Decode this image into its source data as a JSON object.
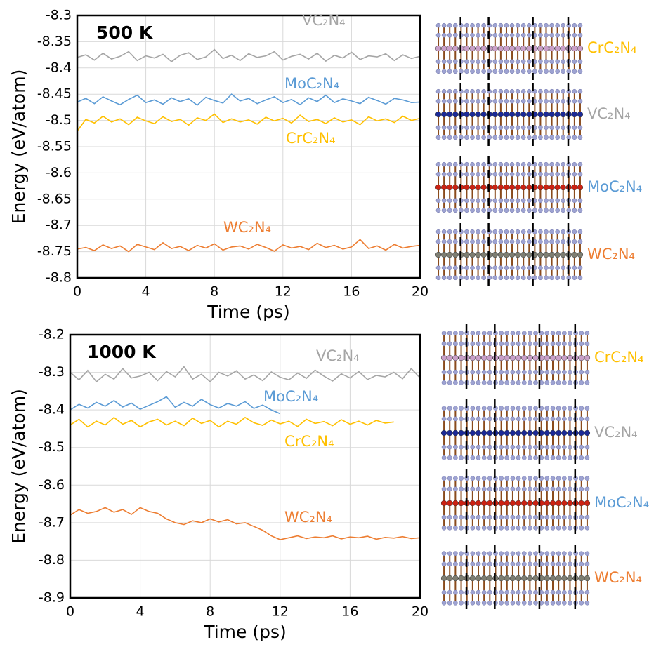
{
  "chart_data": [
    {
      "type": "line",
      "annotation": "500 K",
      "xlabel": "Time (ps)",
      "ylabel": "Energy (eV/atom)",
      "xlim": [
        0,
        20
      ],
      "ylim": [
        -8.8,
        -8.3
      ],
      "xticks": [
        0,
        4,
        8,
        12,
        16,
        20
      ],
      "yticks": [
        -8.8,
        -8.75,
        -8.7,
        -8.65,
        -8.6,
        -8.55,
        -8.5,
        -8.45,
        -8.4,
        -8.35,
        -8.3
      ],
      "grid": true,
      "x": [
        0,
        0.5,
        1,
        1.5,
        2,
        2.5,
        3,
        3.5,
        4,
        4.5,
        5,
        5.5,
        6,
        6.5,
        7,
        7.5,
        8,
        8.5,
        9,
        9.5,
        10,
        10.5,
        11,
        11.5,
        12,
        12.5,
        13,
        13.5,
        14,
        14.5,
        15,
        15.5,
        16,
        16.5,
        17,
        17.5,
        18,
        18.5,
        19,
        19.5,
        20
      ],
      "series": [
        {
          "name": "VC₂N₄",
          "color": "#a5a5a5",
          "values": [
            -8.38,
            -8.375,
            -8.385,
            -8.372,
            -8.383,
            -8.378,
            -8.369,
            -8.386,
            -8.377,
            -8.381,
            -8.374,
            -8.388,
            -8.376,
            -8.371,
            -8.384,
            -8.379,
            -8.365,
            -8.382,
            -8.376,
            -8.386,
            -8.373,
            -8.38,
            -8.377,
            -8.369,
            -8.385,
            -8.378,
            -8.374,
            -8.383,
            -8.372,
            -8.387,
            -8.376,
            -8.381,
            -8.37,
            -8.384,
            -8.377,
            -8.379,
            -8.373,
            -8.386,
            -8.375,
            -8.382,
            -8.378
          ]
        },
        {
          "name": "MoC₂N₄",
          "color": "#5b9bd5",
          "values": [
            -8.465,
            -8.458,
            -8.468,
            -8.455,
            -8.463,
            -8.47,
            -8.46,
            -8.452,
            -8.466,
            -8.461,
            -8.469,
            -8.457,
            -8.464,
            -8.459,
            -8.471,
            -8.456,
            -8.462,
            -8.467,
            -8.45,
            -8.463,
            -8.458,
            -8.468,
            -8.461,
            -8.455,
            -8.466,
            -8.46,
            -8.47,
            -8.457,
            -8.464,
            -8.452,
            -8.466,
            -8.459,
            -8.463,
            -8.468,
            -8.456,
            -8.462,
            -8.469,
            -8.458,
            -8.461,
            -8.466,
            -8.465
          ]
        },
        {
          "name": "CrC₂N₄",
          "color": "#ffc000",
          "values": [
            -8.52,
            -8.498,
            -8.505,
            -8.492,
            -8.503,
            -8.497,
            -8.508,
            -8.494,
            -8.501,
            -8.506,
            -8.493,
            -8.502,
            -8.498,
            -8.509,
            -8.495,
            -8.5,
            -8.488,
            -8.504,
            -8.497,
            -8.503,
            -8.499,
            -8.507,
            -8.494,
            -8.501,
            -8.496,
            -8.505,
            -8.49,
            -8.502,
            -8.498,
            -8.506,
            -8.495,
            -8.503,
            -8.499,
            -8.508,
            -8.493,
            -8.501,
            -8.497,
            -8.504,
            -8.492,
            -8.5,
            -8.496
          ]
        },
        {
          "name": "WC₂N₄",
          "color": "#ed7d31",
          "values": [
            -8.745,
            -8.742,
            -8.748,
            -8.737,
            -8.744,
            -8.739,
            -8.75,
            -8.736,
            -8.741,
            -8.746,
            -8.733,
            -8.744,
            -8.74,
            -8.748,
            -8.738,
            -8.743,
            -8.735,
            -8.747,
            -8.741,
            -8.739,
            -8.745,
            -8.736,
            -8.742,
            -8.749,
            -8.737,
            -8.743,
            -8.74,
            -8.746,
            -8.734,
            -8.742,
            -8.738,
            -8.745,
            -8.741,
            -8.727,
            -8.744,
            -8.739,
            -8.747,
            -8.736,
            -8.743,
            -8.74,
            -8.738
          ]
        }
      ]
    },
    {
      "type": "line",
      "annotation": "1000 K",
      "xlabel": "Time (ps)",
      "ylabel": "Energy (eV/atom)",
      "xlim": [
        0,
        20
      ],
      "ylim": [
        -8.9,
        -8.2
      ],
      "xticks": [
        0,
        4,
        8,
        12,
        16,
        20
      ],
      "yticks": [
        -8.9,
        -8.8,
        -8.7,
        -8.6,
        -8.5,
        -8.4,
        -8.3,
        -8.2
      ],
      "grid": true,
      "x": [
        0,
        0.5,
        1,
        1.5,
        2,
        2.5,
        3,
        3.5,
        4,
        4.5,
        5,
        5.5,
        6,
        6.5,
        7,
        7.5,
        8,
        8.5,
        9,
        9.5,
        10,
        10.5,
        11,
        11.5,
        12,
        12.5,
        13,
        13.5,
        14,
        14.5,
        15,
        15.5,
        16,
        16.5,
        17,
        17.5,
        18,
        18.5,
        19,
        19.5,
        20
      ],
      "series": [
        {
          "name": "VC₂N₄",
          "color": "#a5a5a5",
          "values": [
            -8.3,
            -8.32,
            -8.295,
            -8.325,
            -8.305,
            -8.318,
            -8.29,
            -8.315,
            -8.31,
            -8.3,
            -8.322,
            -8.298,
            -8.312,
            -8.285,
            -8.318,
            -8.305,
            -8.325,
            -8.3,
            -8.31,
            -8.296,
            -8.318,
            -8.307,
            -8.322,
            -8.299,
            -8.313,
            -8.32,
            -8.302,
            -8.316,
            -8.294,
            -8.31,
            -8.323,
            -8.304,
            -8.315,
            -8.298,
            -8.319,
            -8.308,
            -8.312,
            -8.3,
            -8.317,
            -8.29,
            -8.315
          ]
        },
        {
          "name": "MoC₂N₄",
          "color": "#5b9bd5",
          "values": [
            -8.4,
            -8.385,
            -8.395,
            -8.38,
            -8.39,
            -8.375,
            -8.392,
            -8.382,
            -8.398,
            -8.388,
            -8.378,
            -8.365,
            -8.393,
            -8.38,
            -8.39,
            -8.372,
            -8.386,
            -8.395,
            -8.383,
            -8.39,
            -8.378,
            -8.396,
            -8.387,
            -8.4,
            -8.41,
            null,
            null,
            null,
            null,
            null,
            null,
            null,
            null,
            null,
            null,
            null,
            null,
            null,
            null,
            null,
            null
          ]
        },
        {
          "name": "CrC₂N₄",
          "color": "#ffc000",
          "values": [
            -8.44,
            -8.425,
            -8.445,
            -8.43,
            -8.44,
            -8.42,
            -8.438,
            -8.428,
            -8.445,
            -8.432,
            -8.425,
            -8.44,
            -8.43,
            -8.442,
            -8.422,
            -8.436,
            -8.428,
            -8.445,
            -8.43,
            -8.438,
            -8.42,
            -8.434,
            -8.441,
            -8.427,
            -8.437,
            -8.43,
            -8.444,
            -8.425,
            -8.436,
            -8.431,
            -8.442,
            -8.426,
            -8.438,
            -8.43,
            -8.44,
            -8.428,
            -8.435,
            -8.432,
            null,
            null,
            null
          ]
        },
        {
          "name": "WC₂N₄",
          "color": "#ed7d31",
          "values": [
            -8.68,
            -8.665,
            -8.675,
            -8.67,
            -8.66,
            -8.672,
            -8.665,
            -8.678,
            -8.66,
            -8.67,
            -8.675,
            -8.69,
            -8.7,
            -8.705,
            -8.695,
            -8.7,
            -8.69,
            -8.698,
            -8.692,
            -8.703,
            -8.7,
            -8.71,
            -8.72,
            -8.735,
            -8.745,
            -8.74,
            -8.735,
            -8.742,
            -8.738,
            -8.74,
            -8.735,
            -8.743,
            -8.738,
            -8.74,
            -8.736,
            -8.744,
            -8.739,
            -8.741,
            -8.737,
            -8.742,
            -8.74
          ]
        }
      ]
    }
  ]
}
